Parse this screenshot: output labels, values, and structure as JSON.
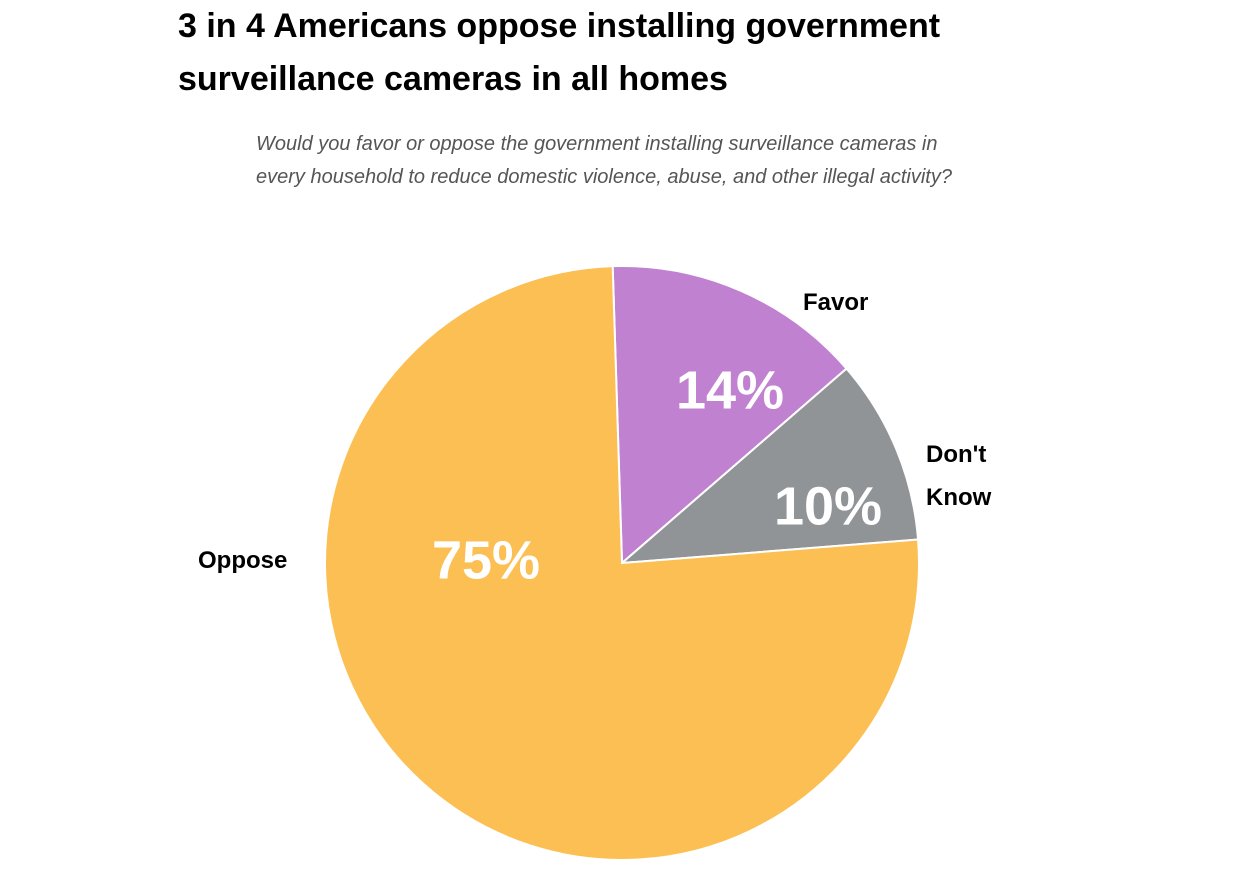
{
  "chart_data": {
    "type": "pie",
    "title": "3 in 4 Americans oppose installing government surveillance cameras in all homes",
    "subtitle": "Would you favor or oppose the government installing surveillance cameras in every household to reduce domestic violence, abuse, and other illegal activity?",
    "slices": [
      {
        "key": "favor",
        "label": "Favor",
        "value": 14,
        "value_label": "14%",
        "color": "#c081d0"
      },
      {
        "key": "dont-know",
        "label": "Don't Know",
        "label_lines": [
          "Don't",
          "Know"
        ],
        "value": 10,
        "value_label": "10%",
        "color": "#919496"
      },
      {
        "key": "oppose",
        "label": "Oppose",
        "value": 75,
        "value_label": "75%",
        "color": "#fcbf53"
      }
    ]
  }
}
